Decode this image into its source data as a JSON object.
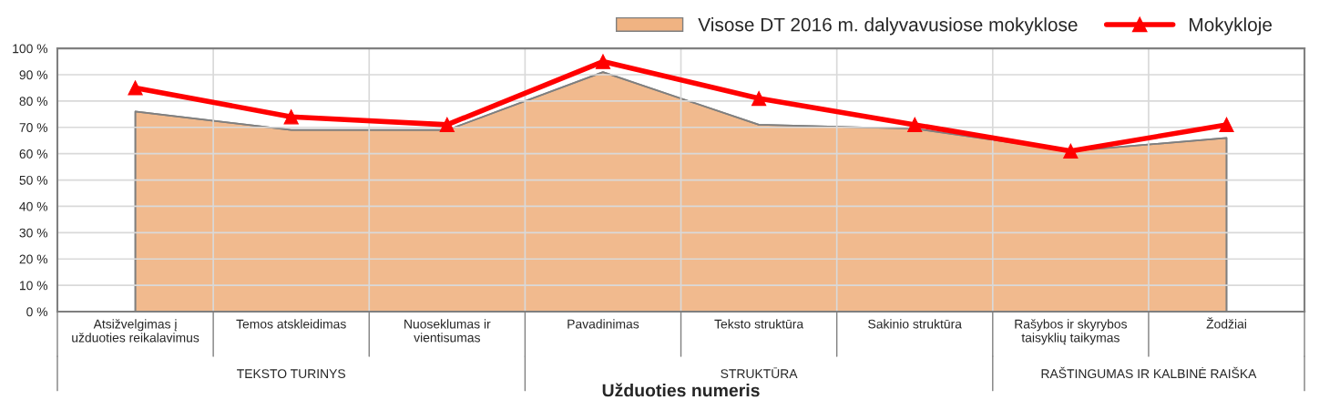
{
  "chart_data": {
    "type": "area",
    "xlabel": "Užduoties numeris",
    "categories": [
      "Atsižvelgimas į užduoties reikalavimus",
      "Temos atskleidimas",
      "Nuoseklumas ir vientisumas",
      "Pavadinimas",
      "Teksto struktūra",
      "Sakinio struktūra",
      "Rašybos ir skyrybos taisyklių taikymas",
      "Žodžiai"
    ],
    "series": [
      {
        "name": "Visose DT 2016 m. dalyvavusiose mokyklose",
        "color": "#f0b382",
        "values": [
          76,
          69,
          69,
          91,
          71,
          69.5,
          61,
          66
        ]
      },
      {
        "name": "Mokykloje",
        "type": "line",
        "color": "#ff0000",
        "marker": "triangle",
        "values": [
          85,
          74,
          71,
          95,
          81,
          71,
          61,
          71
        ]
      }
    ],
    "ylim": [
      0,
      100
    ],
    "yticks": [
      {
        "value": 0,
        "label": "0 %"
      },
      {
        "value": 10,
        "label": "10 %"
      },
      {
        "value": 20,
        "label": "20 %"
      },
      {
        "value": 30,
        "label": "30 %"
      },
      {
        "value": 40,
        "label": "40 %"
      },
      {
        "value": 50,
        "label": "50 %"
      },
      {
        "value": 60,
        "label": "60 %"
      },
      {
        "value": 70,
        "label": "70 %"
      },
      {
        "value": 80,
        "label": "80 %"
      },
      {
        "value": 90,
        "label": "90 %"
      },
      {
        "value": 100,
        "label": "100 %"
      }
    ],
    "annotations": [
      "TEKSTO TURINYS",
      "STRUKTŪRA",
      "RAŠTINGUMAS IR KALBINĖ RAIŠKA"
    ],
    "grid": true,
    "legend": "top right"
  }
}
